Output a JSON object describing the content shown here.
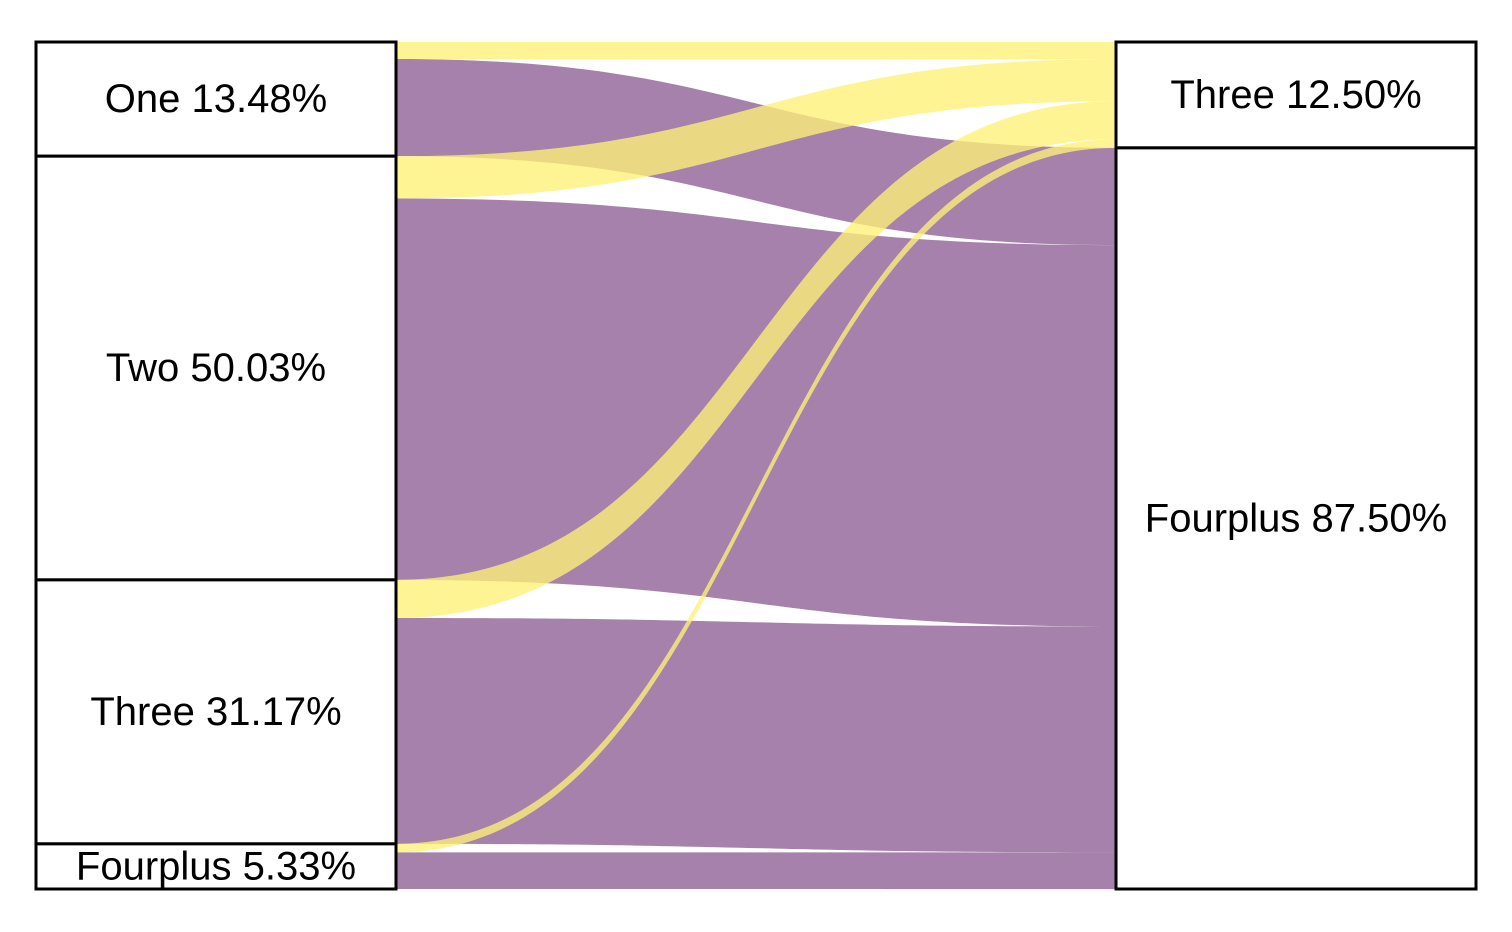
{
  "chart_data": {
    "type": "sankey",
    "colors": {
      "Three": "#fff176",
      "Fourplus": "#8c5e94",
      "flow_opacity": 0.78
    },
    "left_stratum": [
      {
        "key": "One",
        "label": "One 13.48%",
        "percent": 13.48
      },
      {
        "key": "Two",
        "label": "Two 50.03%",
        "percent": 50.03
      },
      {
        "key": "Three",
        "label": "Three 31.17%",
        "percent": 31.17
      },
      {
        "key": "Fourplus",
        "label": "Fourplus 5.33%",
        "percent": 5.33
      }
    ],
    "right_stratum": [
      {
        "key": "Three",
        "label": "Three 12.50%",
        "percent": 12.5
      },
      {
        "key": "Fourplus",
        "label": "Fourplus 87.50%",
        "percent": 87.5
      }
    ],
    "flows": [
      {
        "from": "One",
        "to": "Three",
        "percent": 2.0
      },
      {
        "from": "One",
        "to": "Fourplus",
        "percent": 11.48
      },
      {
        "from": "Two",
        "to": "Three",
        "percent": 5.0
      },
      {
        "from": "Two",
        "to": "Fourplus",
        "percent": 45.03
      },
      {
        "from": "Three",
        "to": "Three",
        "percent": 4.5
      },
      {
        "from": "Three",
        "to": "Fourplus",
        "percent": 26.67
      },
      {
        "from": "Fourplus",
        "to": "Three",
        "percent": 1.0
      },
      {
        "from": "Fourplus",
        "to": "Fourplus",
        "percent": 4.33
      }
    ]
  }
}
